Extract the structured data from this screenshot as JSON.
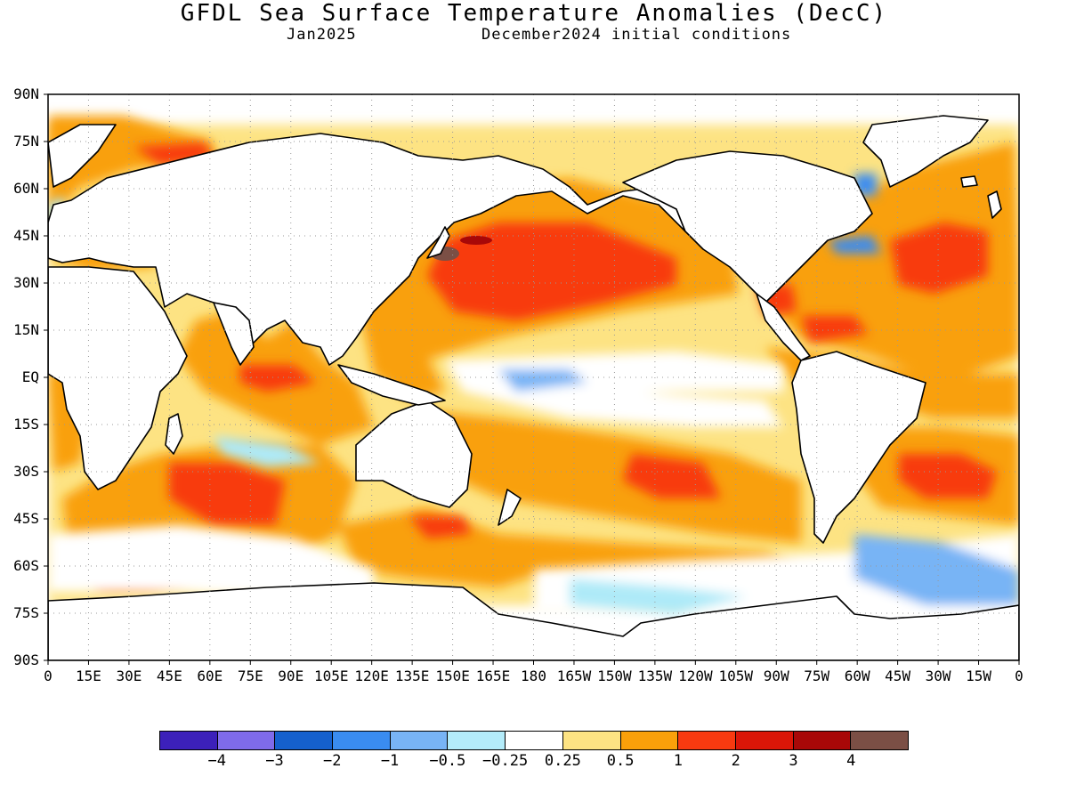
{
  "title": "GFDL Sea Surface Temperature Anomalies (DecC)",
  "subtitle_left": "Jan2025",
  "subtitle_right": "December2024 initial conditions",
  "map": {
    "y_ticks": [
      "90N",
      "75N",
      "60N",
      "45N",
      "30N",
      "15N",
      "EQ",
      "15S",
      "30S",
      "45S",
      "60S",
      "75S",
      "90S"
    ],
    "x_ticks": [
      "0",
      "15E",
      "30E",
      "45E",
      "60E",
      "75E",
      "90E",
      "105E",
      "120E",
      "135E",
      "150E",
      "165E",
      "180",
      "165W",
      "150W",
      "135W",
      "120W",
      "105W",
      "90W",
      "75W",
      "60W",
      "45W",
      "30W",
      "15W",
      "0"
    ],
    "land_color": "#ffffff",
    "grid": "dotted",
    "anomaly_regions": [
      {
        "name": "north-pacific-warm",
        "level": "2",
        "color": "#f83a10"
      },
      {
        "name": "kuroshio-hot",
        "level": "4",
        "color": "#7b4f45"
      },
      {
        "name": "equatorial-pacific-cool",
        "level": "-1",
        "color": "#78b4f5"
      },
      {
        "name": "north-atlantic-warm",
        "level": "2",
        "color": "#f83a10"
      },
      {
        "name": "gulf-stream-cool",
        "level": "-2",
        "color": "#3a8cf0"
      },
      {
        "name": "south-pacific-warm",
        "level": "1",
        "color": "#f9a00a"
      },
      {
        "name": "south-indian-warm",
        "level": "2",
        "color": "#f83a10"
      },
      {
        "name": "south-atlantic-warm",
        "level": "2",
        "color": "#f83a10"
      },
      {
        "name": "southern-ocean-cool",
        "level": "-0.5",
        "color": "#aeeaf8"
      },
      {
        "name": "weddell-sea-cool",
        "level": "-1",
        "color": "#78b4f5"
      }
    ]
  },
  "colorbar": {
    "colors": [
      "#3c20ba",
      "#7f6bea",
      "#1560cd",
      "#3a8cf0",
      "#78b4f5",
      "#b4ecfa",
      "#ffffff",
      "#fde383",
      "#f9a00a",
      "#f83a10",
      "#da1608",
      "#a80808",
      "#7b4f45"
    ],
    "labels": [
      "−4",
      "−3",
      "−2",
      "−1",
      "−0.5",
      "−0.25",
      "0.25",
      "0.5",
      "1",
      "2",
      "3",
      "4"
    ]
  }
}
